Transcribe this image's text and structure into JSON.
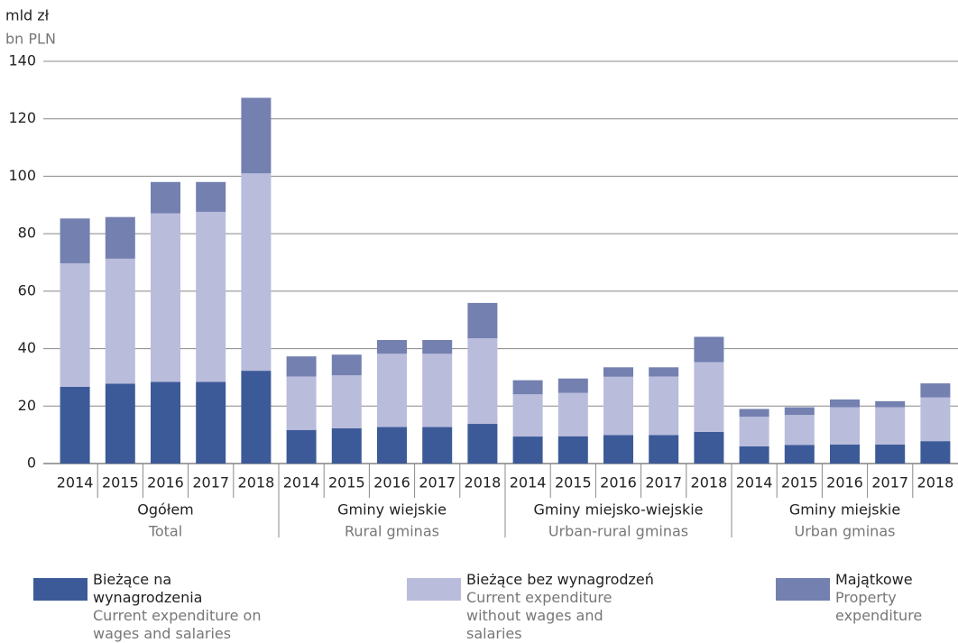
{
  "chart_data": {
    "type": "stacked_bar",
    "y_label": "mld zł",
    "y_label_en": "bn PLN",
    "groups": [
      {
        "name": "Ogółem",
        "name_en": "Total",
        "categories": [
          "2014",
          "2015",
          "2016",
          "2017",
          "2018"
        ]
      },
      {
        "name": "Gminy wiejskie",
        "name_en": "Rural gminas",
        "categories": [
          "2014",
          "2015",
          "2016",
          "2017",
          "2018"
        ]
      },
      {
        "name": "Gminy miejsko-wiejskie",
        "name_en": "Urban-rural gminas",
        "categories": [
          "2014",
          "2015",
          "2016",
          "2017",
          "2018"
        ]
      },
      {
        "name": "Gminy miejskie",
        "name_en": "Urban gminas",
        "categories": [
          "2014",
          "2015",
          "2016",
          "2017",
          "2018"
        ]
      }
    ],
    "series": [
      {
        "name": "Bieżące na wynagrodzenia",
        "name_en": "Current expenditure on wages and salaries",
        "color": "#3d5a98",
        "values": [
          26.7,
          27.8,
          28.4,
          28.4,
          32.3,
          11.7,
          12.3,
          12.7,
          12.7,
          13.8,
          9.4,
          9.5,
          9.9,
          9.9,
          11.0,
          6.0,
          6.5,
          6.6,
          6.6,
          7.8
        ]
      },
      {
        "name": "Bieżące bez wynagrodzeń",
        "name_en": "Current expenditure without wages and salaries",
        "color": "#b9bcdb",
        "values": [
          43.0,
          43.5,
          58.7,
          59.2,
          68.7,
          18.6,
          18.4,
          25.5,
          25.5,
          29.8,
          14.7,
          15.1,
          20.3,
          20.4,
          24.3,
          10.3,
          10.4,
          13.0,
          13.0,
          15.2
        ]
      },
      {
        "name": "Majątkowe",
        "name_en": "Property expenditure",
        "color": "#7380b0",
        "values": [
          15.6,
          14.5,
          10.9,
          10.4,
          26.3,
          7.0,
          7.2,
          4.8,
          4.8,
          12.3,
          4.9,
          5.0,
          3.3,
          3.2,
          8.8,
          2.7,
          2.7,
          2.7,
          2.1,
          4.9
        ]
      }
    ],
    "ylim": [
      0,
      140
    ],
    "yticks": [
      0,
      20,
      40,
      60,
      80,
      100,
      120,
      140
    ],
    "grid": true
  }
}
